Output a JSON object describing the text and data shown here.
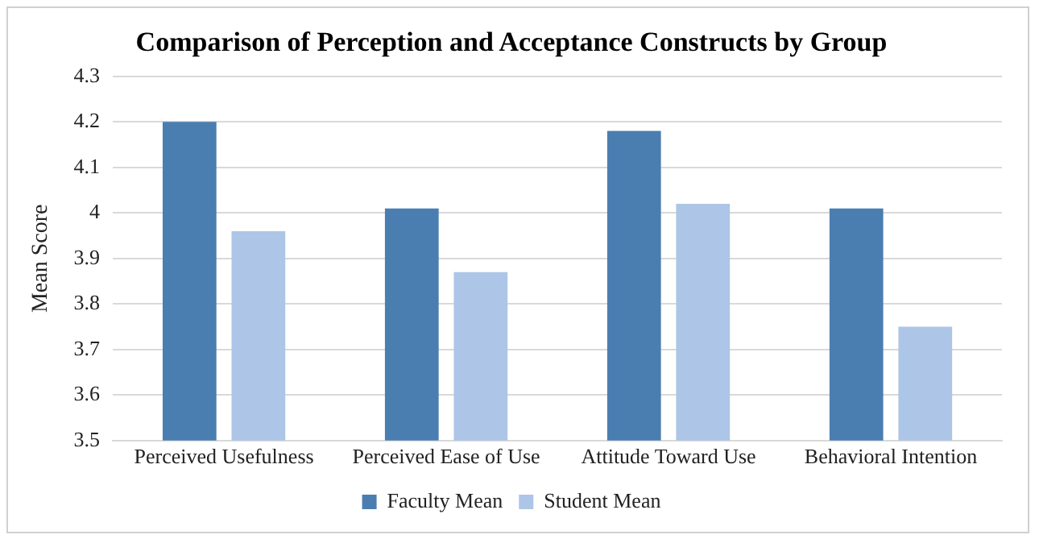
{
  "chart_data": {
    "type": "bar",
    "title": "Comparison of Perception and Acceptance Constructs by Group",
    "ylabel": "Mean Score",
    "categories": [
      "Perceived Usefulness",
      "Perceived Ease of Use",
      "Attitude Toward Use",
      "Behavioral Intention"
    ],
    "series": [
      {
        "name": "Faculty Mean",
        "color": "#4a7eb0",
        "values": [
          4.2,
          4.01,
          4.18,
          4.01
        ]
      },
      {
        "name": "Student Mean",
        "color": "#adc5e6",
        "values": [
          3.96,
          3.87,
          4.02,
          3.75
        ]
      }
    ],
    "ylim": [
      3.5,
      4.3
    ],
    "yticks": [
      3.5,
      3.6,
      3.7,
      3.8,
      3.9,
      4,
      4.1,
      4.2,
      4.3
    ],
    "grid": "y",
    "legend": "bottom"
  }
}
